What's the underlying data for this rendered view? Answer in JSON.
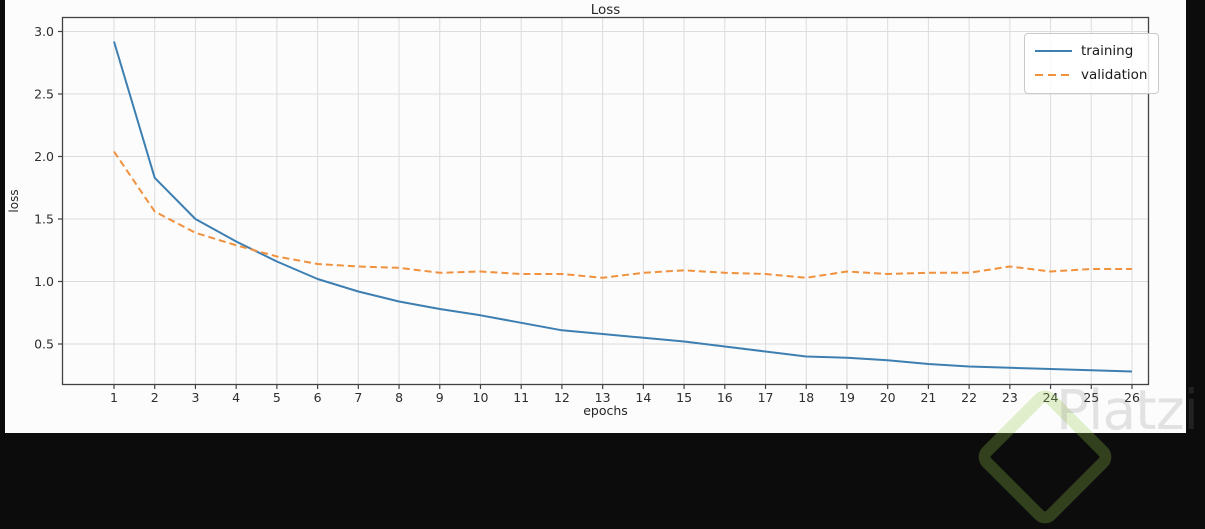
{
  "window": {
    "frame_color": "#0c0c0c",
    "canvas_background": "#fcfcfc"
  },
  "chart_data": {
    "type": "line",
    "title": "Loss",
    "xlabel": "epochs",
    "ylabel": "loss",
    "grid": true,
    "x": [
      1,
      2,
      3,
      4,
      5,
      6,
      7,
      8,
      9,
      10,
      11,
      12,
      13,
      14,
      15,
      16,
      17,
      18,
      19,
      20,
      21,
      22,
      23,
      24,
      25,
      26
    ],
    "series": [
      {
        "name": "training",
        "line_style": "solid",
        "color": "#3e7fb2",
        "values": [
          2.92,
          1.83,
          1.5,
          1.32,
          1.16,
          1.02,
          0.92,
          0.84,
          0.78,
          0.73,
          0.67,
          0.61,
          0.58,
          0.55,
          0.52,
          0.48,
          0.44,
          0.4,
          0.39,
          0.37,
          0.34,
          0.32,
          0.31,
          0.3,
          0.29,
          0.28
        ]
      },
      {
        "name": "validation",
        "line_style": "dashed",
        "color": "#f0913d",
        "values": [
          2.04,
          1.56,
          1.39,
          1.29,
          1.2,
          1.14,
          1.12,
          1.11,
          1.07,
          1.08,
          1.06,
          1.06,
          1.03,
          1.07,
          1.09,
          1.07,
          1.06,
          1.03,
          1.08,
          1.06,
          1.07,
          1.07,
          1.12,
          1.08,
          1.1,
          1.1
        ]
      }
    ],
    "yticks": [
      0.5,
      1.0,
      1.5,
      2.0,
      2.5,
      3.0
    ],
    "ylim": [
      0.17,
      3.12
    ],
    "xlim": [
      -0.28,
      26.42
    ],
    "legend": {
      "position": "top-right",
      "entries": [
        {
          "label": "training",
          "line_style": "solid",
          "color": "#3e7fb2"
        },
        {
          "label": "validation",
          "line_style": "dashed",
          "color": "#f0913d"
        }
      ]
    }
  },
  "watermark": {
    "text": "Platzi",
    "logo_color": "#98ca3f"
  },
  "style": {
    "grid_color": "#dcdcdc",
    "spine_color": "#424242",
    "tick_text_color": "#2e2e2e"
  }
}
